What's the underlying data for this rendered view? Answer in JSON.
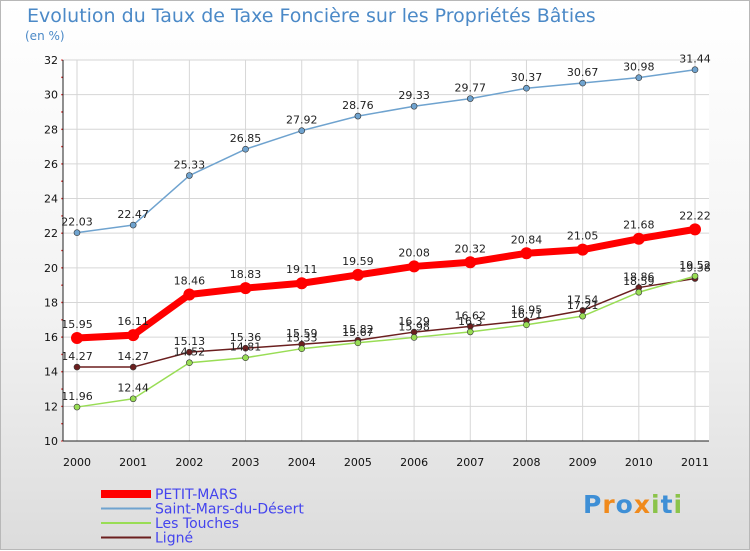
{
  "title": "Evolution du Taux de Taxe Foncière sur les Propriétés Bâties",
  "unit": "(en %)",
  "logo": "Proxiti",
  "chart_data": {
    "type": "line",
    "x": [
      "2000",
      "2001",
      "2002",
      "2003",
      "2004",
      "2005",
      "2006",
      "2007",
      "2008",
      "2009",
      "2010",
      "2011"
    ],
    "ylim": [
      10,
      32
    ],
    "yticks": [
      "10",
      "12",
      "14",
      "16",
      "18",
      "20",
      "22",
      "24",
      "26",
      "28",
      "30",
      "32"
    ],
    "grid": true,
    "legend_placement": "bottom-left",
    "series": [
      {
        "name": "Ligné",
        "color": "#6b1f1f",
        "values": [
          14.27,
          14.27,
          15.13,
          15.36,
          15.59,
          15.82,
          16.29,
          16.62,
          16.95,
          17.54,
          18.86,
          19.38
        ],
        "labels": [
          "14.27",
          "14.27",
          "15.13",
          "15.36",
          "15.59",
          "15.82",
          "16.29",
          "16.62",
          "16.95",
          "17.54",
          "18.86",
          "19.38"
        ]
      },
      {
        "name": "Les Touches",
        "color": "#99dd55",
        "values": [
          11.96,
          12.44,
          14.52,
          14.81,
          15.33,
          15.67,
          15.98,
          16.3,
          16.71,
          17.21,
          18.59,
          19.52
        ],
        "labels": [
          "11.96",
          "12.44",
          "14.52",
          "14.81",
          "15.33",
          "15.67",
          "15.98",
          "16.3",
          "16.71",
          "17.21",
          "18.59",
          "19.52"
        ]
      },
      {
        "name": "Saint-Mars-du-Désert",
        "color": "#6fa3cf",
        "values": [
          22.03,
          22.47,
          25.33,
          26.85,
          27.92,
          28.76,
          29.33,
          29.77,
          30.37,
          30.67,
          30.98,
          31.44
        ],
        "labels": [
          "22.03",
          "22.47",
          "25.33",
          "26.85",
          "27.92",
          "28.76",
          "29.33",
          "29.77",
          "30.37",
          "30.67",
          "30.98",
          "31.44"
        ]
      },
      {
        "name": "PETIT-MARS",
        "color": "#ff0000",
        "values": [
          15.95,
          16.11,
          18.46,
          18.83,
          19.11,
          19.59,
          20.08,
          20.32,
          20.84,
          21.05,
          21.68,
          22.22
        ],
        "labels": [
          "15.95",
          "16.11",
          "18.46",
          "18.83",
          "19.11",
          "19.59",
          "20.08",
          "20.32",
          "20.84",
          "21.05",
          "21.68",
          "22.22"
        ]
      }
    ],
    "legend": [
      "PETIT-MARS",
      "Saint-Mars-du-Désert",
      "Les Touches",
      "Ligné"
    ]
  }
}
